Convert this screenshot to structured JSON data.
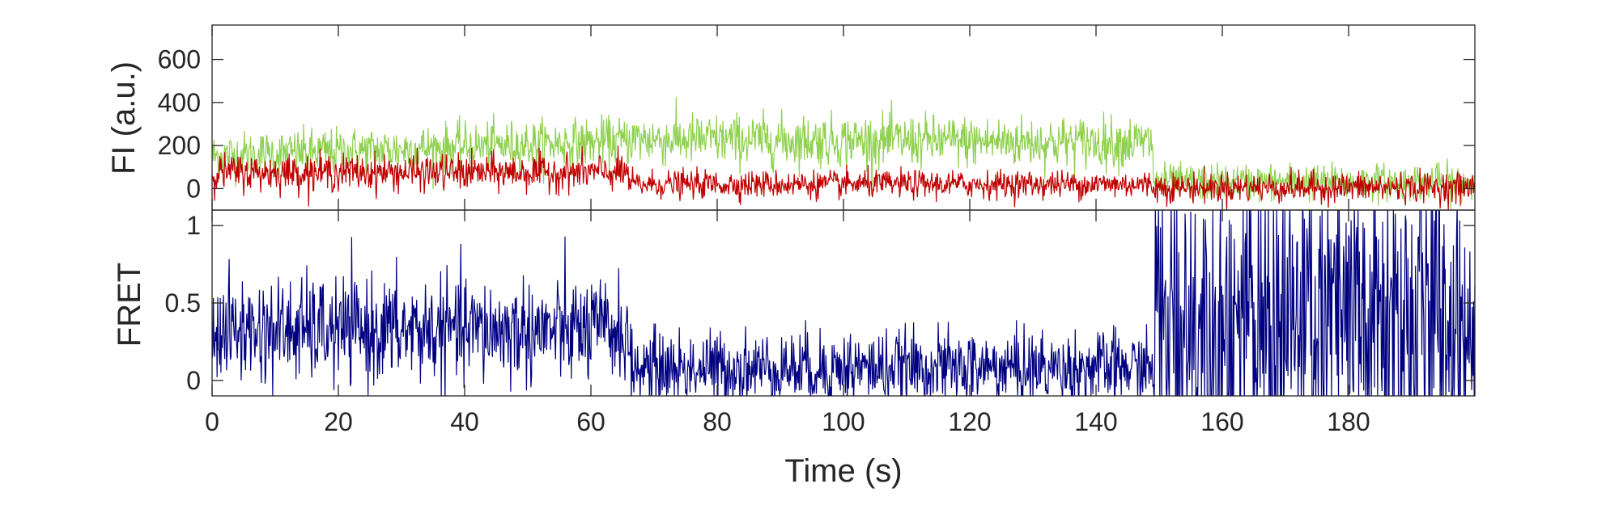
{
  "chart_data": [
    {
      "type": "line",
      "panel": "top",
      "ylabel": "FI (a.u.)",
      "xlabel": "",
      "xlim": [
        0,
        200
      ],
      "ylim": [
        -100,
        760
      ],
      "yticks": [
        0,
        200,
        400,
        600
      ],
      "ytick_labels": [
        "0",
        "200",
        "400",
        "600"
      ],
      "grid": false,
      "series": [
        {
          "role": "acceptor",
          "color": "#8fd14f",
          "segments": [
            {
              "t_start": 0,
              "t_end": 66,
              "mean": 150,
              "slope": 1.1,
              "noise": 55
            },
            {
              "t_start": 66,
              "t_end": 149,
              "mean": 230,
              "slope": -0.2,
              "noise": 60
            },
            {
              "t_start": 149,
              "t_end": 200,
              "mean": 30,
              "slope": 0,
              "noise": 42
            }
          ]
        },
        {
          "role": "donor",
          "color": "#c00000",
          "segments": [
            {
              "t_start": 0,
              "t_end": 66,
              "mean": 75,
              "slope": 0,
              "noise": 42
            },
            {
              "t_start": 66,
              "t_end": 149,
              "mean": 20,
              "slope": 0,
              "noise": 32
            },
            {
              "t_start": 149,
              "t_end": 200,
              "mean": 5,
              "slope": 0,
              "noise": 35
            }
          ]
        }
      ]
    },
    {
      "type": "line",
      "panel": "bottom",
      "ylabel": "FRET",
      "xlabel": "Time (s)",
      "xlim": [
        0,
        200
      ],
      "ylim": [
        -0.1,
        1.1
      ],
      "yticks": [
        0,
        0.5,
        1
      ],
      "ytick_labels": [
        "0",
        "0.5",
        "1"
      ],
      "xticks": [
        0,
        20,
        40,
        60,
        80,
        100,
        120,
        140,
        160,
        180
      ],
      "xtick_labels": [
        "0",
        "20",
        "40",
        "60",
        "80",
        "100",
        "120",
        "140",
        "160",
        "180"
      ],
      "grid": false,
      "series": [
        {
          "role": "fret",
          "color": "#000080",
          "segments": [
            {
              "t_start": 0,
              "t_end": 66,
              "mean": 0.32,
              "noise": 0.17
            },
            {
              "t_start": 66,
              "t_end": 149,
              "mean": 0.08,
              "noise": 0.12
            },
            {
              "t_start": 149,
              "t_end": 200,
              "mean": 0.35,
              "noise": 0.6
            }
          ]
        }
      ]
    }
  ]
}
